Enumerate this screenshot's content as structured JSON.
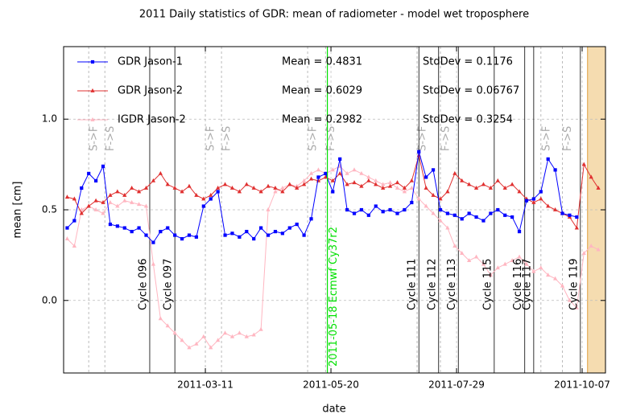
{
  "chart_data": {
    "type": "line",
    "title": "2011 Daily statistics of GDR: mean of radiometer - model wet troposphere",
    "x_label": "date",
    "y_label": "mean [cm]",
    "xlim": [
      "2010-12-22",
      "2011-10-20"
    ],
    "xticks": [
      "2011-03-11",
      "2011-05-20",
      "2011-07-29",
      "2011-10-07"
    ],
    "ylim": [
      -0.4,
      1.4
    ],
    "yticks": [
      {
        "value": 0.0,
        "label": "0.0"
      },
      {
        "value": 0.5,
        "label": "0.5"
      },
      {
        "value": 1.0,
        "label": "1.0"
      }
    ],
    "grid": true,
    "x": [
      "2010-12-24",
      "2010-12-28",
      "2011-01-01",
      "2011-01-05",
      "2011-01-09",
      "2011-01-13",
      "2011-01-17",
      "2011-01-21",
      "2011-01-25",
      "2011-01-29",
      "2011-02-02",
      "2011-02-06",
      "2011-02-10",
      "2011-02-14",
      "2011-02-18",
      "2011-02-22",
      "2011-02-26",
      "2011-03-02",
      "2011-03-06",
      "2011-03-10",
      "2011-03-14",
      "2011-03-18",
      "2011-03-22",
      "2011-03-26",
      "2011-03-30",
      "2011-04-03",
      "2011-04-07",
      "2011-04-11",
      "2011-04-15",
      "2011-04-19",
      "2011-04-23",
      "2011-04-27",
      "2011-05-01",
      "2011-05-05",
      "2011-05-09",
      "2011-05-13",
      "2011-05-17",
      "2011-05-21",
      "2011-05-25",
      "2011-05-29",
      "2011-06-02",
      "2011-06-06",
      "2011-06-10",
      "2011-06-14",
      "2011-06-18",
      "2011-06-22",
      "2011-06-26",
      "2011-06-30",
      "2011-07-04",
      "2011-07-08",
      "2011-07-12",
      "2011-07-16",
      "2011-07-20",
      "2011-07-24",
      "2011-07-28",
      "2011-08-01",
      "2011-08-05",
      "2011-08-09",
      "2011-08-13",
      "2011-08-17",
      "2011-08-21",
      "2011-08-25",
      "2011-08-29",
      "2011-09-02",
      "2011-09-06",
      "2011-09-10",
      "2011-09-14",
      "2011-09-18",
      "2011-09-22",
      "2011-09-26",
      "2011-09-30",
      "2011-10-04",
      "2011-10-08",
      "2011-10-12",
      "2011-10-16"
    ],
    "series": [
      {
        "name": "GDR Jason-1",
        "color": "#0000ff",
        "marker": "square",
        "mean": "Mean = 0.4831",
        "stddev": "StdDev = 0.1176",
        "values": [
          0.4,
          0.44,
          0.62,
          0.7,
          0.66,
          0.74,
          0.42,
          0.41,
          0.4,
          0.38,
          0.4,
          0.36,
          0.32,
          0.38,
          0.4,
          0.36,
          0.34,
          0.36,
          0.35,
          0.52,
          0.56,
          0.6,
          0.36,
          0.37,
          0.35,
          0.38,
          0.34,
          0.4,
          0.36,
          0.38,
          0.37,
          0.4,
          0.42,
          0.36,
          0.45,
          0.68,
          0.7,
          0.6,
          0.78,
          0.5,
          0.48,
          0.5,
          0.47,
          0.52,
          0.49,
          0.5,
          0.48,
          0.5,
          0.54,
          0.82,
          0.68,
          0.72,
          0.5,
          0.48,
          0.47,
          0.45,
          0.48,
          0.46,
          0.44,
          0.48,
          0.5,
          0.47,
          0.46,
          0.38,
          0.55,
          0.56,
          0.6,
          0.78,
          0.72,
          0.48,
          0.47,
          0.46,
          null,
          null,
          null
        ]
      },
      {
        "name": "GDR Jason-2",
        "color": "#e03030",
        "marker": "triangle",
        "mean": "Mean = 0.6029",
        "stddev": "StdDev = 0.06767",
        "values": [
          0.57,
          0.56,
          0.48,
          0.52,
          0.55,
          0.54,
          0.58,
          0.6,
          0.58,
          0.62,
          0.6,
          0.62,
          0.66,
          0.7,
          0.64,
          0.62,
          0.6,
          0.63,
          0.58,
          0.56,
          0.58,
          0.62,
          0.64,
          0.62,
          0.6,
          0.64,
          0.62,
          0.6,
          0.63,
          0.62,
          0.6,
          0.64,
          0.62,
          0.64,
          0.67,
          0.66,
          0.68,
          0.66,
          0.7,
          0.64,
          0.65,
          0.63,
          0.66,
          0.64,
          0.62,
          0.63,
          0.65,
          0.62,
          0.66,
          0.8,
          0.62,
          0.58,
          0.56,
          0.6,
          0.7,
          0.66,
          0.64,
          0.62,
          0.64,
          0.62,
          0.66,
          0.62,
          0.64,
          0.6,
          0.56,
          0.54,
          0.56,
          0.52,
          0.5,
          0.48,
          0.46,
          0.4,
          0.75,
          0.68,
          0.62
        ]
      },
      {
        "name": "IGDR Jason-2",
        "color": "#ffb6c1",
        "marker": "triangle",
        "mean": "Mean = 0.2982",
        "stddev": "StdDev = 0.3254",
        "values": [
          0.34,
          0.3,
          0.5,
          0.52,
          0.5,
          0.48,
          0.54,
          0.52,
          0.55,
          0.54,
          0.53,
          0.52,
          0.2,
          -0.1,
          -0.14,
          -0.18,
          -0.22,
          -0.26,
          -0.24,
          -0.2,
          -0.26,
          -0.22,
          -0.18,
          -0.2,
          -0.18,
          -0.2,
          -0.19,
          -0.16,
          0.5,
          0.6,
          0.62,
          0.64,
          0.63,
          0.66,
          0.7,
          0.72,
          0.7,
          0.72,
          0.74,
          0.7,
          0.72,
          0.7,
          0.68,
          0.66,
          0.64,
          0.65,
          0.62,
          0.6,
          0.62,
          0.56,
          0.52,
          0.48,
          0.44,
          0.4,
          0.3,
          0.26,
          0.22,
          0.24,
          0.2,
          0.14,
          0.18,
          0.2,
          0.22,
          0.24,
          0.2,
          0.16,
          0.18,
          0.14,
          0.12,
          0.08,
          0.0,
          -0.04,
          0.26,
          0.3,
          0.28
        ]
      }
    ],
    "cycles": [
      {
        "date": "2011-02-08",
        "label": "Cycle 096"
      },
      {
        "date": "2011-02-22",
        "label": "Cycle 097"
      },
      {
        "date": "2011-07-08",
        "label": "Cycle 111"
      },
      {
        "date": "2011-07-19",
        "label": "Cycle 112"
      },
      {
        "date": "2011-07-30",
        "label": "Cycle 113"
      },
      {
        "date": "2011-08-19",
        "label": "Cycle 115"
      },
      {
        "date": "2011-09-05",
        "label": "Cycle 116"
      },
      {
        "date": "2011-09-10",
        "label": "Cycle 117"
      },
      {
        "date": "2011-10-06",
        "label": "Cycle 119"
      }
    ],
    "switches": [
      {
        "date": "2011-01-05",
        "label": "S->F"
      },
      {
        "date": "2011-01-14",
        "label": "F->S"
      },
      {
        "date": "2011-03-11",
        "label": "S->F"
      },
      {
        "date": "2011-03-20",
        "label": "F->S"
      },
      {
        "date": "2011-05-07",
        "label": "S->F"
      },
      {
        "date": "2011-05-17",
        "label": "F->S"
      },
      {
        "date": "2011-07-07",
        "label": "S->F"
      },
      {
        "date": "2011-07-20",
        "label": "F->S"
      },
      {
        "date": "2011-09-14",
        "label": "S->F"
      },
      {
        "date": "2011-09-26",
        "label": "F->S"
      }
    ],
    "event": {
      "date": "2011-05-18",
      "label": "2011-05-18 Ecmwf Cy37r2",
      "color": "#00e000"
    },
    "shade": {
      "from": "2011-10-10",
      "to": "2011-10-20",
      "color": "#f5dcb0"
    }
  }
}
